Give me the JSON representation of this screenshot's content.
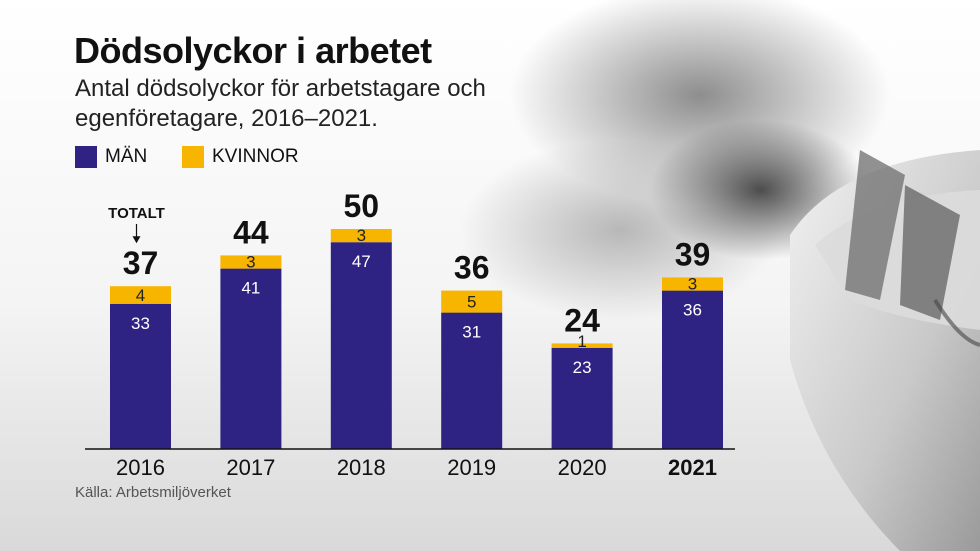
{
  "title": "Dödsolyckor i arbetet",
  "subtitle": "Antal dödsolyckor för arbetstagare och egenföretagare, 2016–2021.",
  "source": "Källa: Arbetsmiljöverket",
  "total_marker_label": "TOTALT",
  "colors": {
    "men": "#2e2282",
    "women": "#f7b500",
    "text": "#111111"
  },
  "chart_data": {
    "type": "bar",
    "stacked": true,
    "categories": [
      "2016",
      "2017",
      "2018",
      "2019",
      "2020",
      "2021"
    ],
    "highlighted_category": "2021",
    "series": [
      {
        "name": "MÄN",
        "values": [
          33,
          41,
          47,
          31,
          23,
          36
        ]
      },
      {
        "name": "KVINNOR",
        "values": [
          4,
          3,
          3,
          5,
          1,
          3
        ]
      }
    ],
    "totals": [
      37,
      44,
      50,
      36,
      24,
      39
    ],
    "ylim": [
      0,
      50
    ],
    "grid": false,
    "legend": "top-left"
  }
}
